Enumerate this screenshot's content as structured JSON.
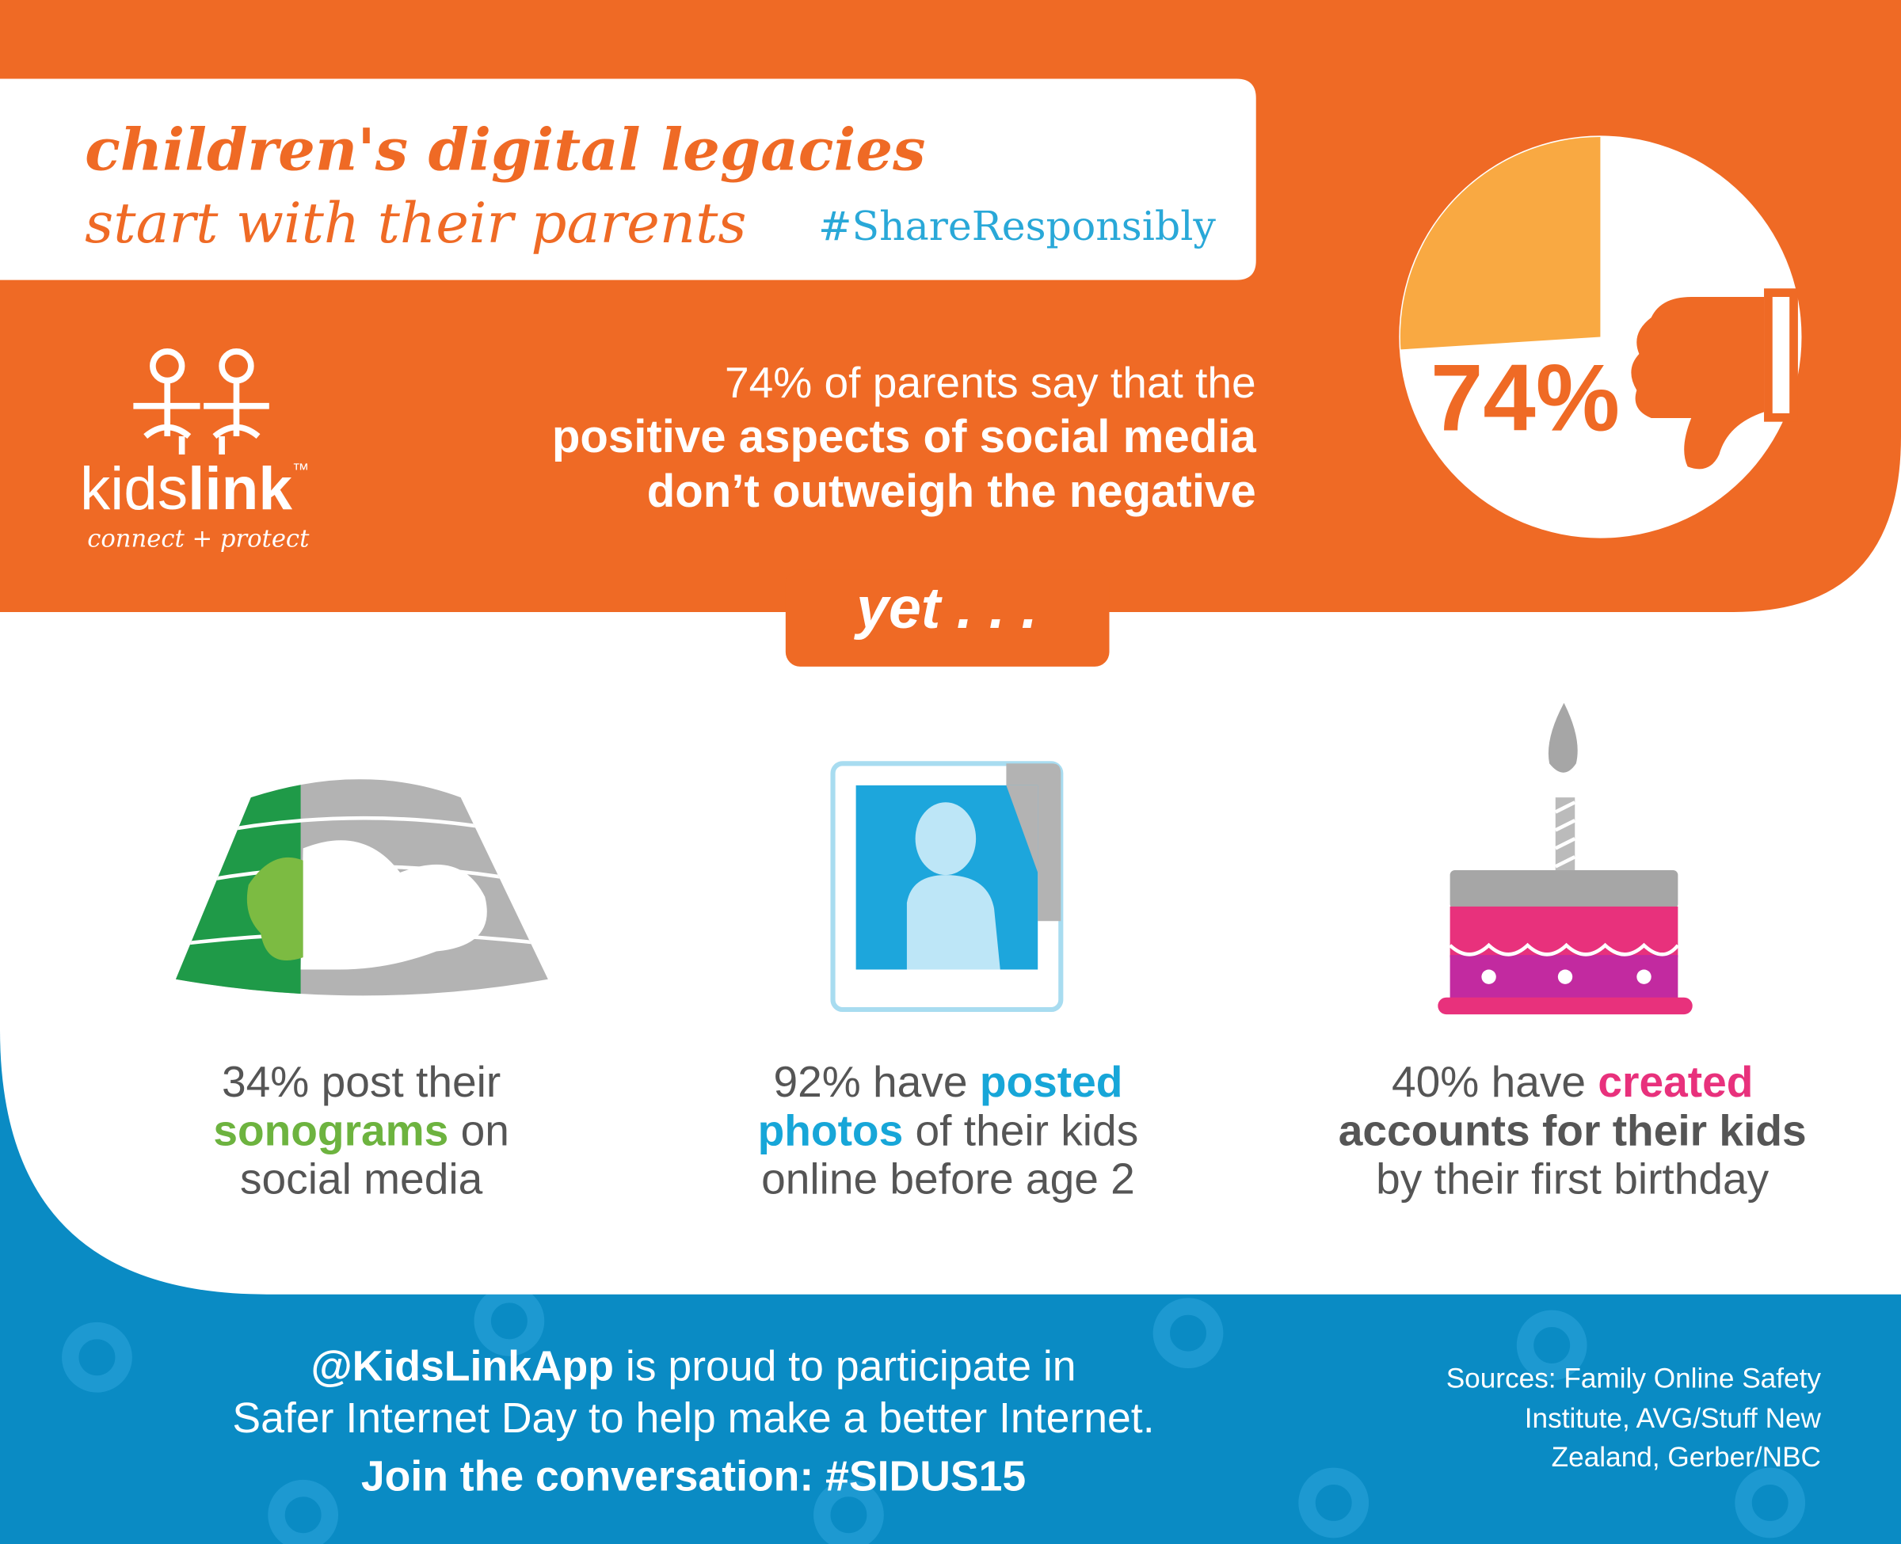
{
  "header": {
    "title": "children's digital legacies",
    "subtitle": "start with their parents",
    "hashtag": "#ShareResponsibly"
  },
  "logo": {
    "light": "kids",
    "bold": "link",
    "trademark": "™",
    "tagline": "connect + protect"
  },
  "stat": {
    "value": 74,
    "label": "74%",
    "lines": [
      "74% of parents say that the",
      "positive aspects of social media",
      "don’t outweigh the negative"
    ]
  },
  "transition": "yet . . .",
  "facts": [
    {
      "lines": [
        [
          "34% post their"
        ],
        [
          "sonograms",
          " on"
        ],
        [
          "social media"
        ]
      ]
    },
    {
      "lines": [
        [
          "92% have ",
          "posted"
        ],
        [
          "photos",
          " of their kids"
        ],
        [
          "online before age 2"
        ]
      ]
    },
    {
      "lines": [
        [
          "40% have ",
          "created"
        ],
        [
          "accounts for their kids"
        ],
        [
          "by their first birthday"
        ]
      ]
    }
  ],
  "footer": {
    "lines": [
      [
        "@KidsLinkApp",
        " is proud to participate in"
      ],
      [
        "Safer Internet Day to help make a better Internet."
      ],
      [
        "Join the conversation: #SIDUS15"
      ]
    ],
    "sources": [
      "Sources: Family Online Safety",
      "Institute, AVG/Stuff New",
      "Zealand, Gerber/NBC"
    ]
  }
}
